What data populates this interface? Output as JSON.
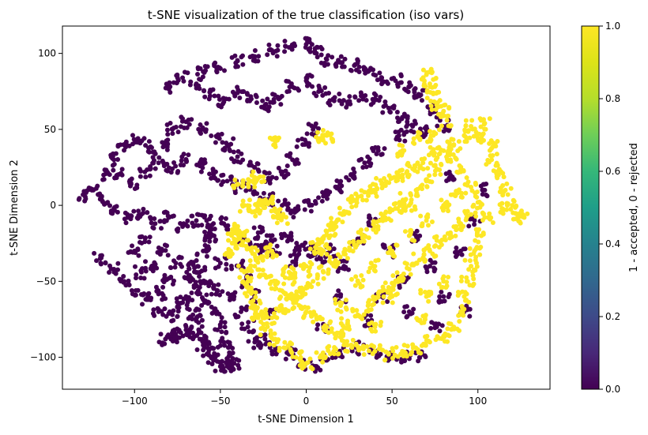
{
  "chart_data": {
    "type": "scatter",
    "title": "t-SNE visualization of the true classification (iso vars)",
    "xlabel": "t-SNE Dimension 1",
    "ylabel": "t-SNE Dimension 2",
    "xlim": [
      -142,
      142
    ],
    "ylim": [
      -121,
      118
    ],
    "xticks": [
      -100,
      -50,
      0,
      50,
      100
    ],
    "yticks": [
      -100,
      -50,
      0,
      50,
      100
    ],
    "grid": false,
    "colormap": "viridis",
    "colorbar": {
      "label": "1 - accepted, 0 - rejected",
      "range": [
        0.0,
        1.0
      ],
      "ticks": [
        "0.0",
        "0.2",
        "0.4",
        "0.6",
        "0.8",
        "1.0"
      ]
    },
    "colors": {
      "rejected": "#440154",
      "accepted": "#fde725"
    },
    "series": [
      {
        "value": 0,
        "points": [
          [
            -130,
            7
          ],
          [
            -124,
            10
          ],
          [
            -118,
            20
          ],
          [
            -112,
            30
          ],
          [
            -106,
            40
          ],
          [
            -98,
            44
          ],
          [
            -90,
            38
          ],
          [
            -82,
            40
          ],
          [
            -78,
            50
          ],
          [
            -70,
            55
          ],
          [
            -60,
            50
          ],
          [
            -52,
            45
          ],
          [
            -46,
            40
          ],
          [
            -40,
            32
          ],
          [
            -30,
            25
          ],
          [
            -22,
            18
          ],
          [
            -14,
            22
          ],
          [
            -8,
            30
          ],
          [
            -2,
            40
          ],
          [
            4,
            50
          ],
          [
            -60,
            88
          ],
          [
            -50,
            90
          ],
          [
            -40,
            95
          ],
          [
            -30,
            98
          ],
          [
            -20,
            102
          ],
          [
            -10,
            104
          ],
          [
            0,
            106
          ],
          [
            6,
            100
          ],
          [
            12,
            96
          ],
          [
            20,
            94
          ],
          [
            28,
            92
          ],
          [
            36,
            88
          ],
          [
            44,
            84
          ],
          [
            52,
            82
          ],
          [
            60,
            78
          ],
          [
            66,
            72
          ],
          [
            72,
            64
          ],
          [
            76,
            58
          ],
          [
            80,
            52
          ],
          [
            70,
            48
          ],
          [
            -80,
            78
          ],
          [
            -72,
            84
          ],
          [
            -64,
            80
          ],
          [
            -56,
            72
          ],
          [
            -48,
            68
          ],
          [
            -40,
            74
          ],
          [
            -32,
            70
          ],
          [
            -24,
            66
          ],
          [
            -16,
            70
          ],
          [
            -8,
            78
          ],
          [
            0,
            82
          ],
          [
            8,
            76
          ],
          [
            16,
            70
          ],
          [
            24,
            68
          ],
          [
            32,
            72
          ],
          [
            40,
            70
          ],
          [
            48,
            64
          ],
          [
            56,
            58
          ],
          [
            62,
            52
          ],
          [
            54,
            46
          ],
          [
            -110,
            20
          ],
          [
            -102,
            14
          ],
          [
            -94,
            22
          ],
          [
            -86,
            28
          ],
          [
            -78,
            24
          ],
          [
            -70,
            30
          ],
          [
            -62,
            26
          ],
          [
            -54,
            20
          ],
          [
            -46,
            16
          ],
          [
            -38,
            12
          ],
          [
            -30,
            8
          ],
          [
            -22,
            4
          ],
          [
            -14,
            0
          ],
          [
            -6,
            -4
          ],
          [
            2,
            0
          ],
          [
            10,
            6
          ],
          [
            18,
            12
          ],
          [
            26,
            20
          ],
          [
            34,
            28
          ],
          [
            42,
            36
          ],
          [
            -120,
            4
          ],
          [
            -112,
            -2
          ],
          [
            -104,
            -8
          ],
          [
            -96,
            -6
          ],
          [
            -88,
            -12
          ],
          [
            -80,
            -8
          ],
          [
            -72,
            -14
          ],
          [
            -64,
            -10
          ],
          [
            -56,
            -16
          ],
          [
            -48,
            -12
          ],
          [
            -36,
            -22
          ],
          [
            -28,
            -18
          ],
          [
            -20,
            -24
          ],
          [
            -12,
            -20
          ],
          [
            -4,
            -28
          ],
          [
            4,
            -30
          ],
          [
            8,
            -34
          ],
          [
            -6,
            -36
          ],
          [
            -18,
            -32
          ],
          [
            -26,
            -28
          ],
          [
            -120,
            -35
          ],
          [
            -112,
            -42
          ],
          [
            -106,
            -50
          ],
          [
            -98,
            -56
          ],
          [
            -92,
            -62
          ],
          [
            -86,
            -70
          ],
          [
            -78,
            -72
          ],
          [
            -72,
            -64
          ],
          [
            -80,
            -48
          ],
          [
            -90,
            -40
          ],
          [
            -100,
            -30
          ],
          [
            -94,
            -24
          ],
          [
            -84,
            -30
          ],
          [
            -76,
            -38
          ],
          [
            -68,
            -46
          ],
          [
            -62,
            -54
          ],
          [
            -56,
            -50
          ],
          [
            -70,
            -60
          ],
          [
            -84,
            -58
          ],
          [
            -96,
            -44
          ],
          [
            -58,
            -10
          ],
          [
            -56,
            -20
          ],
          [
            -60,
            -30
          ],
          [
            -66,
            -38
          ],
          [
            -62,
            -44
          ],
          [
            -66,
            -72
          ],
          [
            -64,
            -76
          ],
          [
            -60,
            -62
          ],
          [
            -52,
            -56
          ],
          [
            -50,
            -38
          ],
          [
            -82,
            -88
          ],
          [
            -78,
            -86
          ],
          [
            -74,
            -83
          ],
          [
            -70,
            -82
          ],
          [
            -66,
            -84
          ],
          [
            -62,
            -88
          ],
          [
            -60,
            -92
          ],
          [
            -57,
            -97
          ],
          [
            -54,
            -102
          ],
          [
            -50,
            -106
          ],
          [
            -46,
            -106
          ],
          [
            -42,
            -104
          ],
          [
            -48,
            -90
          ],
          [
            -50,
            -80
          ],
          [
            -52,
            -70
          ],
          [
            -44,
            -98
          ],
          [
            -40,
            -40
          ],
          [
            -36,
            -50
          ],
          [
            -42,
            -60
          ],
          [
            -38,
            -70
          ],
          [
            -34,
            -80
          ],
          [
            -30,
            -90
          ],
          [
            -24,
            -88
          ],
          [
            -18,
            -94
          ],
          [
            -10,
            -98
          ],
          [
            -2,
            -104
          ],
          [
            6,
            -106
          ],
          [
            12,
            -102
          ],
          [
            20,
            -98
          ],
          [
            30,
            -94
          ],
          [
            40,
            -96
          ],
          [
            50,
            -98
          ],
          [
            58,
            -100
          ],
          [
            66,
            -100
          ],
          [
            -30,
            -60
          ],
          [
            -22,
            -70
          ],
          [
            14,
            -30
          ],
          [
            22,
            -40
          ],
          [
            30,
            -22
          ],
          [
            40,
            -10
          ],
          [
            48,
            -30
          ],
          [
            56,
            -50
          ],
          [
            64,
            -20
          ],
          [
            72,
            -40
          ],
          [
            80,
            -60
          ],
          [
            90,
            -30
          ],
          [
            98,
            -10
          ],
          [
            104,
            10
          ],
          [
            84,
            20
          ],
          [
            76,
            -80
          ],
          [
            44,
            -60
          ],
          [
            36,
            -76
          ],
          [
            20,
            -60
          ],
          [
            10,
            -80
          ],
          [
            60,
            -70
          ],
          [
            92,
            -70
          ]
        ]
      },
      {
        "value": 1,
        "points": [
          [
            96,
            52
          ],
          [
            104,
            54
          ],
          [
            100,
            44
          ],
          [
            92,
            46
          ],
          [
            86,
            40
          ],
          [
            80,
            36
          ],
          [
            74,
            34
          ],
          [
            68,
            28
          ],
          [
            62,
            24
          ],
          [
            56,
            20
          ],
          [
            50,
            18
          ],
          [
            44,
            14
          ],
          [
            38,
            10
          ],
          [
            32,
            6
          ],
          [
            26,
            2
          ],
          [
            22,
            -4
          ],
          [
            18,
            -10
          ],
          [
            14,
            -16
          ],
          [
            10,
            -22
          ],
          [
            6,
            -28
          ],
          [
            110,
            40
          ],
          [
            108,
            30
          ],
          [
            112,
            20
          ],
          [
            116,
            10
          ],
          [
            120,
            0
          ],
          [
            124,
            -6
          ],
          [
            127,
            -8
          ],
          [
            114,
            -2
          ],
          [
            106,
            -8
          ],
          [
            102,
            -20
          ],
          [
            98,
            -30
          ],
          [
            96,
            -40
          ],
          [
            94,
            -50
          ],
          [
            92,
            -60
          ],
          [
            90,
            -70
          ],
          [
            86,
            -80
          ],
          [
            80,
            -86
          ],
          [
            72,
            -90
          ],
          [
            64,
            -94
          ],
          [
            56,
            -96
          ],
          [
            48,
            -98
          ],
          [
            40,
            -96
          ],
          [
            32,
            -94
          ],
          [
            24,
            -92
          ],
          [
            16,
            -96
          ],
          [
            8,
            -100
          ],
          [
            0,
            -104
          ],
          [
            -6,
            -100
          ],
          [
            -12,
            -94
          ],
          [
            -18,
            -88
          ],
          [
            -24,
            -82
          ],
          [
            -28,
            -74
          ],
          [
            -30,
            -66
          ],
          [
            -32,
            -58
          ],
          [
            -34,
            -50
          ],
          [
            -36,
            -44
          ],
          [
            -30,
            -40
          ],
          [
            -24,
            -46
          ],
          [
            -18,
            -52
          ],
          [
            -12,
            -58
          ],
          [
            -6,
            -64
          ],
          [
            0,
            -70
          ],
          [
            6,
            -74
          ],
          [
            12,
            -80
          ],
          [
            18,
            -84
          ],
          [
            24,
            -78
          ],
          [
            30,
            -72
          ],
          [
            36,
            -66
          ],
          [
            42,
            -60
          ],
          [
            48,
            -54
          ],
          [
            54,
            -48
          ],
          [
            60,
            -42
          ],
          [
            66,
            -36
          ],
          [
            72,
            -30
          ],
          [
            78,
            -24
          ],
          [
            84,
            -18
          ],
          [
            90,
            -12
          ],
          [
            96,
            -6
          ],
          [
            100,
            2
          ],
          [
            96,
            12
          ],
          [
            90,
            22
          ],
          [
            84,
            30
          ],
          [
            76,
            24
          ],
          [
            70,
            16
          ],
          [
            64,
            10
          ],
          [
            58,
            4
          ],
          [
            52,
            -2
          ],
          [
            46,
            -8
          ],
          [
            40,
            -14
          ],
          [
            34,
            -20
          ],
          [
            28,
            -26
          ],
          [
            22,
            -32
          ],
          [
            16,
            -38
          ],
          [
            10,
            -44
          ],
          [
            4,
            -50
          ],
          [
            -2,
            -56
          ],
          [
            -8,
            -62
          ],
          [
            -14,
            -68
          ],
          [
            -20,
            -74
          ],
          [
            -26,
            -70
          ],
          [
            30,
            -50
          ],
          [
            40,
            -40
          ],
          [
            50,
            -30
          ],
          [
            60,
            -20
          ],
          [
            70,
            -10
          ],
          [
            80,
            0
          ],
          [
            88,
            8
          ],
          [
            60,
            0
          ],
          [
            50,
            -60
          ],
          [
            40,
            -80
          ],
          [
            70,
            -60
          ],
          [
            80,
            -50
          ],
          [
            66,
            -76
          ],
          [
            20,
            -66
          ],
          [
            10,
            -30
          ],
          [
            0,
            -40
          ],
          [
            -10,
            -48
          ],
          [
            56,
            36
          ],
          [
            66,
            44
          ],
          [
            74,
            46
          ],
          [
            -36,
            -20
          ],
          [
            -40,
            -16
          ],
          [
            -38,
            -26
          ],
          [
            -42,
            -22
          ],
          [
            -44,
            -30
          ],
          [
            -32,
            -30
          ],
          [
            -26,
            -34
          ],
          [
            -20,
            -30
          ],
          [
            -30,
            -4
          ],
          [
            -26,
            0
          ],
          [
            -22,
            2
          ],
          [
            -36,
            0
          ],
          [
            -18,
            -4
          ],
          [
            -14,
            -8
          ],
          [
            -32,
            16
          ],
          [
            -28,
            18
          ],
          [
            -40,
            14
          ],
          [
            8,
            44
          ],
          [
            12,
            46
          ],
          [
            -18,
            42
          ],
          [
            70,
            86
          ],
          [
            72,
            80
          ],
          [
            74,
            74
          ],
          [
            76,
            66
          ],
          [
            80,
            62
          ],
          [
            82,
            56
          ],
          [
            -10,
            -44
          ]
        ]
      }
    ]
  }
}
